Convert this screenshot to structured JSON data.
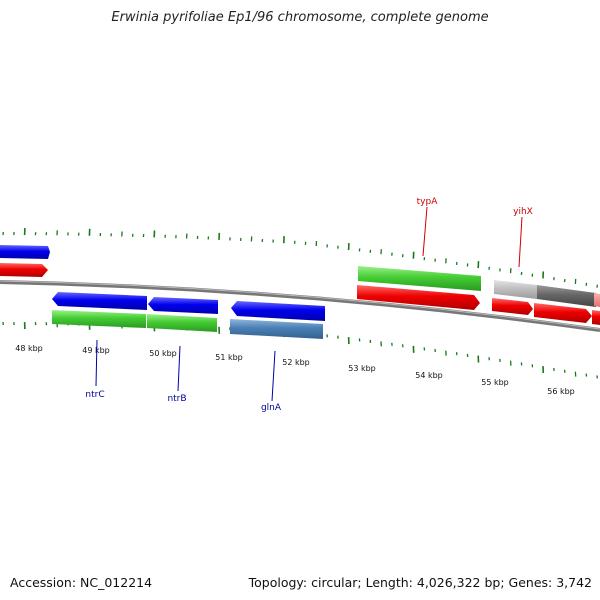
{
  "title": "Erwinia pyrifoliae Ep1/96 chromosome, complete genome",
  "accession": "Accession: NC_012214",
  "summary": "Topology: circular; Length: 4,026,322 bp; Genes: 3,742",
  "colors": {
    "forward_gene": "#0000ee",
    "reverse_gene": "#ee0000",
    "green_feature": "#44cc33",
    "steelblue_feature": "#4a7fb5",
    "grey_feature": "#c0c0c0",
    "darkgrey_feature": "#666666",
    "tick": "#1a7a1a",
    "label_blue": "#000099",
    "label_red": "#cc0000"
  },
  "ticks": {
    "labels": [
      "48 kbp",
      "49 kbp",
      "50 kbp",
      "51 kbp",
      "52 kbp",
      "53 kbp",
      "54 kbp",
      "55 kbp",
      "56 kbp"
    ]
  },
  "gene_labels": [
    {
      "name": "ntrC",
      "color": "blue"
    },
    {
      "name": "ntrB",
      "color": "blue"
    },
    {
      "name": "glnA",
      "color": "blue"
    },
    {
      "name": "typA",
      "color": "red"
    },
    {
      "name": "yihX",
      "color": "red"
    }
  ]
}
